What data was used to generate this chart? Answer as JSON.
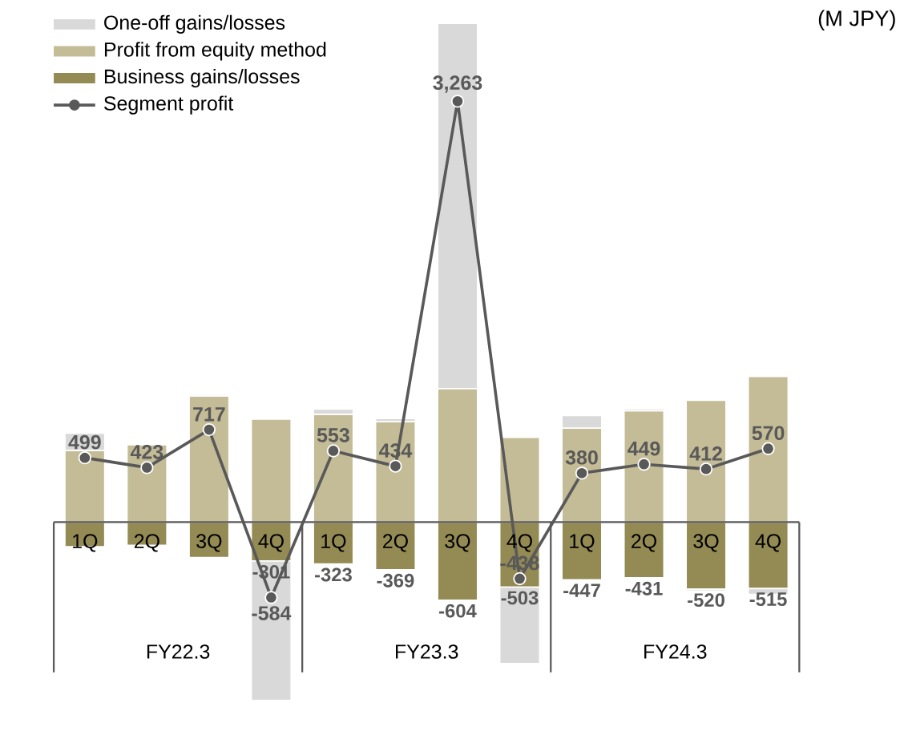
{
  "chart_data": {
    "type": "bar",
    "stacked": true,
    "ylabel": "(M JPY)",
    "legend": "top left",
    "marker": "circle",
    "tick_labels": "x",
    "categories": [
      "1Q",
      "2Q",
      "3Q",
      "4Q",
      "1Q",
      "2Q",
      "3Q",
      "4Q",
      "1Q",
      "2Q",
      "3Q",
      "4Q"
    ],
    "annotations": [
      "FY22.3",
      "FY23.3",
      "FY24.3"
    ],
    "series": [
      {
        "name": "Business gains/losses",
        "type": "bar",
        "color": "#948a54",
        "values": [
          -190,
          -179,
          -274,
          -301,
          -323,
          -369,
          -604,
          -503,
          -447,
          -431,
          -520,
          -515
        ],
        "value_labels": [
          null,
          null,
          null,
          "-301",
          "-323",
          "-369",
          "-604",
          "-503",
          "-447",
          "-431",
          "-520",
          "-515"
        ]
      },
      {
        "name": "Profit from equity method",
        "type": "bar",
        "color": "#c4bc96",
        "values": [
          555,
          600,
          979,
          798,
          836,
          779,
          1036,
          657,
          729,
          864,
          945,
          1129
        ]
      },
      {
        "name": "One-off gains/losses",
        "type": "bar",
        "color": "#d9d9d9",
        "values": [
          134,
          null,
          12,
          -1081,
          40,
          24,
          2831,
          -592,
          98,
          16,
          -13,
          -44
        ]
      },
      {
        "name": "Segment profit",
        "type": "line",
        "color": "#595959",
        "values": [
          499,
          423,
          717,
          -584,
          553,
          434,
          3263,
          -438,
          380,
          449,
          412,
          570
        ],
        "value_labels": [
          "499",
          "423",
          "717",
          "-584",
          "553",
          "434",
          "3,263",
          "-438",
          "380",
          "449",
          "412",
          "570"
        ]
      }
    ]
  }
}
